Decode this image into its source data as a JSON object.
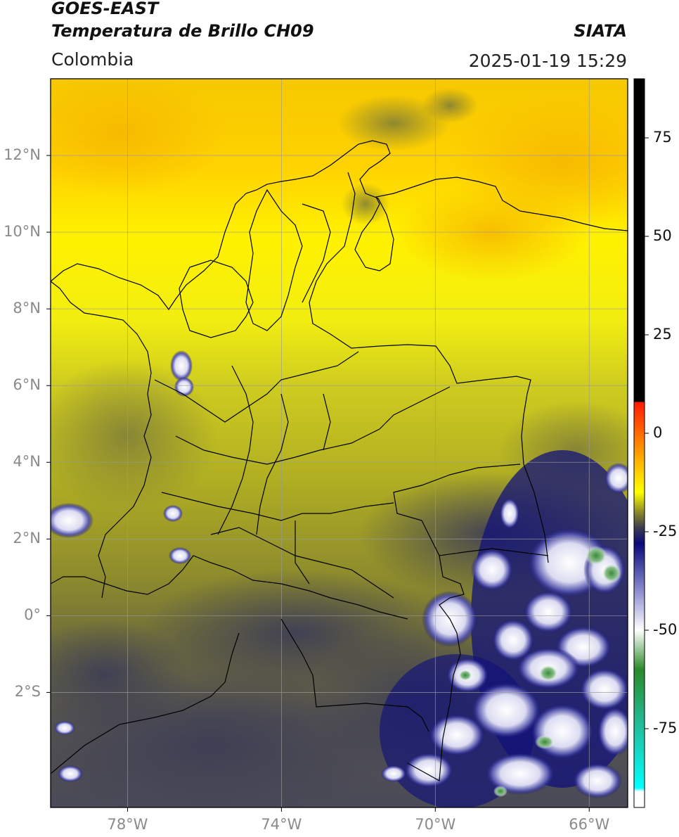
{
  "header": {
    "satellite": "GOES-EAST",
    "product": "Temperatura de Brillo CH09",
    "region": "Colombia",
    "source": "SIATA",
    "timestamp": "2025-01-19 15:29"
  },
  "map": {
    "lon_range": [
      -80,
      -65
    ],
    "lat_range": [
      -5,
      14
    ],
    "lon_ticks": [
      {
        "value": -78,
        "label": "78°W"
      },
      {
        "value": -74,
        "label": "74°W"
      },
      {
        "value": -70,
        "label": "70°W"
      },
      {
        "value": -66,
        "label": "66°W"
      }
    ],
    "lat_ticks": [
      {
        "value": 12,
        "label": "12°N"
      },
      {
        "value": 10,
        "label": "10°N"
      },
      {
        "value": 8,
        "label": "8°N"
      },
      {
        "value": 6,
        "label": "6°N"
      },
      {
        "value": 4,
        "label": "4°N"
      },
      {
        "value": 2,
        "label": "2°N"
      },
      {
        "value": 0,
        "label": "0°"
      },
      {
        "value": -2,
        "label": "2°S"
      }
    ],
    "gridlines": true
  },
  "colorbar": {
    "range": [
      -95,
      90
    ],
    "ticks": [
      {
        "value": 75,
        "label": "75"
      },
      {
        "value": 50,
        "label": "50"
      },
      {
        "value": 25,
        "label": "25"
      },
      {
        "value": 0,
        "label": "0"
      },
      {
        "value": -25,
        "label": "-25"
      },
      {
        "value": -50,
        "label": "-50"
      },
      {
        "value": -75,
        "label": "-75"
      }
    ],
    "stops": [
      {
        "value": 90,
        "color": "#000000"
      },
      {
        "value": 8,
        "color": "#000000"
      },
      {
        "value": 7.9,
        "color": "#ff1a00"
      },
      {
        "value": 0,
        "color": "#ff6a00"
      },
      {
        "value": -10,
        "color": "#ffd000"
      },
      {
        "value": -15,
        "color": "#ffff00"
      },
      {
        "value": -20,
        "color": "#8a8a2a"
      },
      {
        "value": -24,
        "color": "#3c3c4e"
      },
      {
        "value": -28,
        "color": "#0a0a7a"
      },
      {
        "value": -40,
        "color": "#8c8cd0"
      },
      {
        "value": -50,
        "color": "#ffffff"
      },
      {
        "value": -60,
        "color": "#2a8a2a"
      },
      {
        "value": -75,
        "color": "#22c0a0"
      },
      {
        "value": -90,
        "color": "#00ffff"
      },
      {
        "value": -91,
        "color": "#ffffff"
      },
      {
        "value": -95,
        "color": "#ffffff"
      }
    ]
  }
}
